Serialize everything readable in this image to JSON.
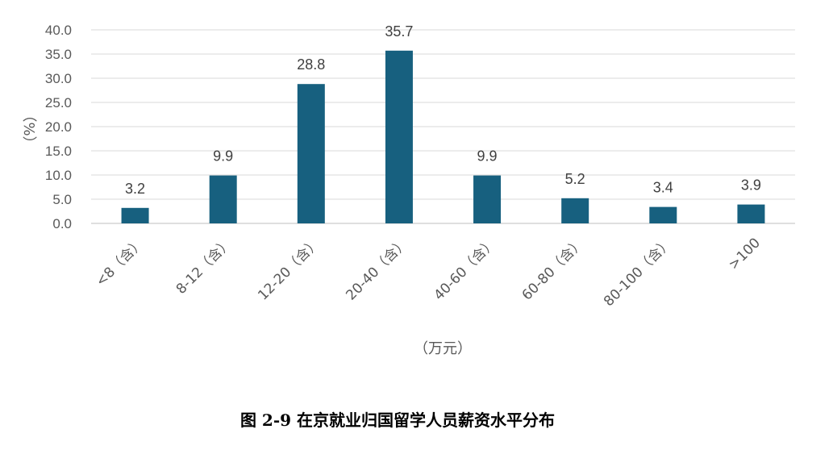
{
  "chart_data": {
    "type": "bar",
    "title": "图 2-9  在京就业归国留学人员薪资水平分布",
    "xlabel": "（万元）",
    "ylabel": "（%）",
    "categories": [
      "<8（含）",
      "8-12（含）",
      "12-20（含）",
      "20-40（含）",
      "40-60（含）",
      "60-80（含）",
      "80-100（含）",
      ">100"
    ],
    "values": [
      3.2,
      9.9,
      28.8,
      35.7,
      9.9,
      5.2,
      3.4,
      3.9
    ],
    "value_labels": [
      "3.2",
      "9.9",
      "28.8",
      "35.7",
      "9.9",
      "5.2",
      "3.4",
      "3.9"
    ],
    "ylim": [
      0,
      40
    ],
    "yticks": [
      "0.0",
      "5.0",
      "10.0",
      "15.0",
      "20.0",
      "25.0",
      "30.0",
      "35.0",
      "40.0"
    ],
    "ytick_values": [
      0,
      5,
      10,
      15,
      20,
      25,
      30,
      35,
      40
    ],
    "grid": true,
    "legend": "none",
    "bar_color": "#17607f"
  }
}
